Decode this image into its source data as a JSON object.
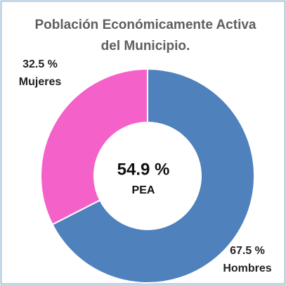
{
  "chart_data": {
    "type": "donut",
    "title": [
      "Población Económicamente Activa",
      "del Municipio."
    ],
    "categories": [
      "Hombres",
      "Mujeres"
    ],
    "values": [
      67.5,
      32.5
    ],
    "value_labels": [
      "67.5 %",
      "32.5 %"
    ],
    "colors": [
      "#4f81bd",
      "#f462c9"
    ],
    "center_label": [
      "54.9 %",
      "PEA"
    ]
  }
}
